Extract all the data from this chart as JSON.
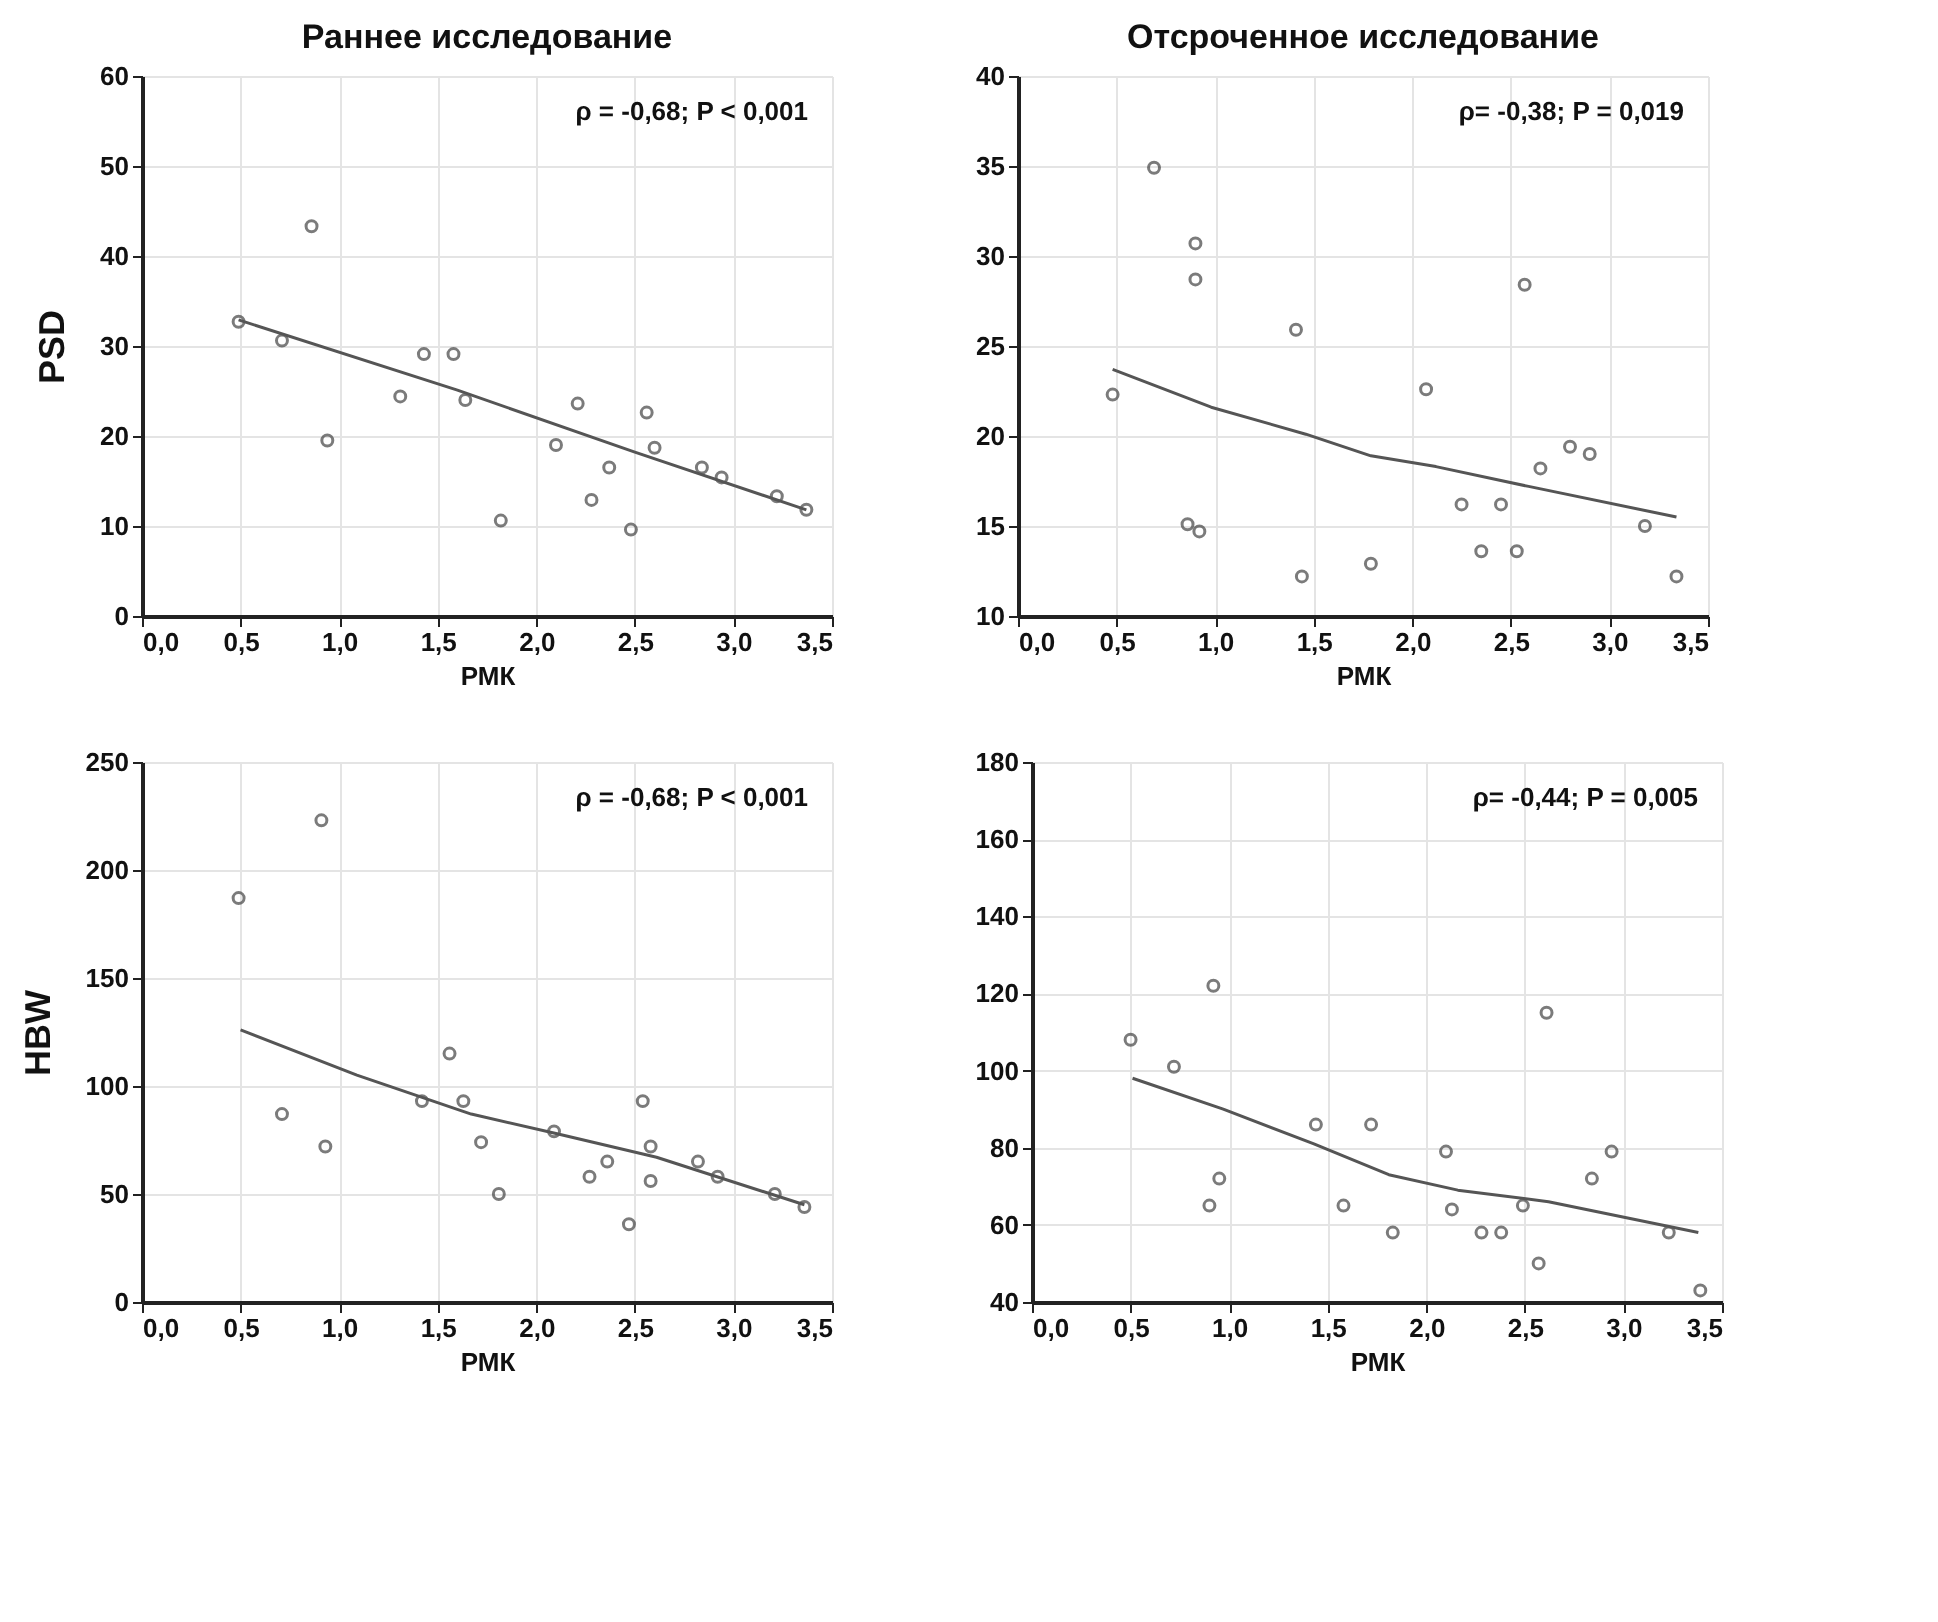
{
  "chart_data": [
    {
      "type": "scatter",
      "title": "Раннее исследование",
      "xlabel": "РМК",
      "ylabel": "PSD",
      "annotations": [
        "ρ = -0,68; P < 0,001"
      ],
      "grid": true,
      "xlim": [
        0,
        3.5
      ],
      "xticks": [
        {
          "value": 0,
          "label": "0,0"
        },
        {
          "value": 0.5,
          "label": "0,5"
        },
        {
          "value": 1,
          "label": "1,0"
        },
        {
          "value": 1.5,
          "label": "1,5"
        },
        {
          "value": 2,
          "label": "2,0"
        },
        {
          "value": 2.5,
          "label": "2,5"
        },
        {
          "value": 3,
          "label": "3,0"
        },
        {
          "value": 3.5,
          "label": "3,5"
        }
      ],
      "ylim": [
        0,
        60
      ],
      "yticks": [
        0,
        10,
        20,
        30,
        40,
        50,
        60
      ],
      "series": [
        {
          "marker": "circle",
          "color": "#444444",
          "x": [
            0.49,
            0.71,
            0.86,
            0.94,
            1.31,
            1.43,
            1.58,
            1.64,
            1.82,
            2.1,
            2.21,
            2.28,
            2.37,
            2.48,
            2.56,
            2.6,
            2.84,
            2.94,
            3.22,
            3.37
          ],
          "values": [
            32.7,
            30.6,
            43.3,
            19.5,
            24.4,
            29.1,
            29.1,
            24.0,
            10.6,
            19.0,
            23.6,
            12.9,
            16.5,
            9.6,
            22.6,
            18.7,
            16.5,
            15.4,
            13.3,
            11.8
          ]
        },
        {
          "type": "line",
          "color": "#555555",
          "x": [
            0.49,
            1.6,
            2.5,
            3.37
          ],
          "values": [
            32.9,
            25.1,
            18.2,
            11.8
          ]
        }
      ]
    },
    {
      "type": "scatter",
      "title": "Отсроченное исследование",
      "xlabel": "РМК",
      "annotations": [
        "ρ= -0,38; P = 0,019"
      ],
      "grid": true,
      "xlim": [
        0,
        3.5
      ],
      "xticks": [
        {
          "value": 0,
          "label": "0,0"
        },
        {
          "value": 0.5,
          "label": "0,5"
        },
        {
          "value": 1,
          "label": "1,0"
        },
        {
          "value": 1.5,
          "label": "1,5"
        },
        {
          "value": 2,
          "label": "2,0"
        },
        {
          "value": 2.5,
          "label": "2,5"
        },
        {
          "value": 3,
          "label": "3,0"
        },
        {
          "value": 3.5,
          "label": "3,5"
        }
      ],
      "ylim": [
        10,
        40
      ],
      "yticks": [
        10,
        15,
        20,
        25,
        30,
        35,
        40
      ],
      "series": [
        {
          "marker": "circle",
          "color": "#444444",
          "x": [
            0.48,
            0.69,
            0.86,
            0.9,
            0.9,
            0.92,
            1.41,
            1.44,
            1.79,
            2.07,
            2.25,
            2.35,
            2.45,
            2.53,
            2.57,
            2.65,
            2.8,
            2.9,
            3.18,
            3.34
          ],
          "values": [
            22.3,
            34.9,
            15.1,
            30.7,
            28.7,
            14.7,
            25.9,
            12.2,
            12.9,
            22.6,
            16.2,
            13.6,
            16.2,
            13.6,
            28.4,
            18.2,
            19.4,
            19.0,
            15.0,
            12.2
          ]
        },
        {
          "type": "line",
          "color": "#555555",
          "x": [
            0.48,
            0.98,
            1.46,
            1.79,
            2.12,
            2.59,
            3.34
          ],
          "values": [
            23.7,
            21.6,
            20.1,
            18.9,
            18.3,
            17.2,
            15.5
          ]
        }
      ]
    },
    {
      "type": "scatter",
      "xlabel": "РМК",
      "ylabel": "HBW",
      "annotations": [
        "ρ = -0,68; P < 0,001"
      ],
      "grid": true,
      "xlim": [
        0,
        3.5
      ],
      "xticks": [
        {
          "value": 0,
          "label": "0,0"
        },
        {
          "value": 0.5,
          "label": "0,5"
        },
        {
          "value": 1,
          "label": "1,0"
        },
        {
          "value": 1.5,
          "label": "1,5"
        },
        {
          "value": 2,
          "label": "2,0"
        },
        {
          "value": 2.5,
          "label": "2,5"
        },
        {
          "value": 3,
          "label": "3,0"
        },
        {
          "value": 3.5,
          "label": "3,5"
        }
      ],
      "ylim": [
        0,
        250
      ],
      "yticks": [
        0,
        50,
        100,
        150,
        200,
        250
      ],
      "series": [
        {
          "marker": "circle",
          "color": "#444444",
          "x": [
            0.49,
            0.71,
            0.91,
            0.93,
            1.42,
            1.56,
            1.63,
            1.72,
            1.81,
            2.09,
            2.27,
            2.36,
            2.47,
            2.54,
            2.58,
            2.58,
            2.82,
            2.92,
            3.21,
            3.36
          ],
          "values": [
            187,
            87,
            223,
            72,
            93,
            115,
            93,
            74,
            50,
            79,
            58,
            65,
            36,
            93,
            72,
            56,
            65,
            58,
            50,
            44
          ]
        },
        {
          "type": "line",
          "color": "#555555",
          "x": [
            0.5,
            1.09,
            1.67,
            2.1,
            2.61,
            3.36
          ],
          "values": [
            126,
            105,
            87,
            78,
            67,
            45
          ]
        }
      ]
    },
    {
      "type": "scatter",
      "xlabel": "РМК",
      "annotations": [
        "ρ= -0,44; P = 0,005"
      ],
      "grid": true,
      "xlim": [
        0,
        3.5
      ],
      "xticks": [
        {
          "value": 0,
          "label": "0,0"
        },
        {
          "value": 0.5,
          "label": "0,5"
        },
        {
          "value": 1,
          "label": "1,0"
        },
        {
          "value": 1.5,
          "label": "1,5"
        },
        {
          "value": 2,
          "label": "2,0"
        },
        {
          "value": 2.5,
          "label": "2,5"
        },
        {
          "value": 3,
          "label": "3,0"
        },
        {
          "value": 3.5,
          "label": "3,5"
        }
      ],
      "ylim": [
        40,
        180
      ],
      "yticks": [
        40,
        60,
        80,
        100,
        120,
        140,
        160,
        180
      ],
      "series": [
        {
          "marker": "circle",
          "color": "#444444",
          "x": [
            0.5,
            0.72,
            0.9,
            0.92,
            0.95,
            1.44,
            1.58,
            1.72,
            1.83,
            2.1,
            2.13,
            2.28,
            2.38,
            2.49,
            2.57,
            2.61,
            2.84,
            2.94,
            3.23,
            3.39
          ],
          "values": [
            108,
            101,
            65,
            122,
            72,
            86,
            65,
            86,
            58,
            79,
            64,
            58,
            58,
            65,
            50,
            115,
            72,
            79,
            58,
            43
          ]
        },
        {
          "type": "line",
          "color": "#555555",
          "x": [
            0.51,
            0.97,
            1.43,
            1.81,
            2.16,
            2.62,
            3.38
          ],
          "values": [
            98,
            90,
            81,
            73,
            69,
            66,
            58
          ]
        }
      ]
    }
  ]
}
